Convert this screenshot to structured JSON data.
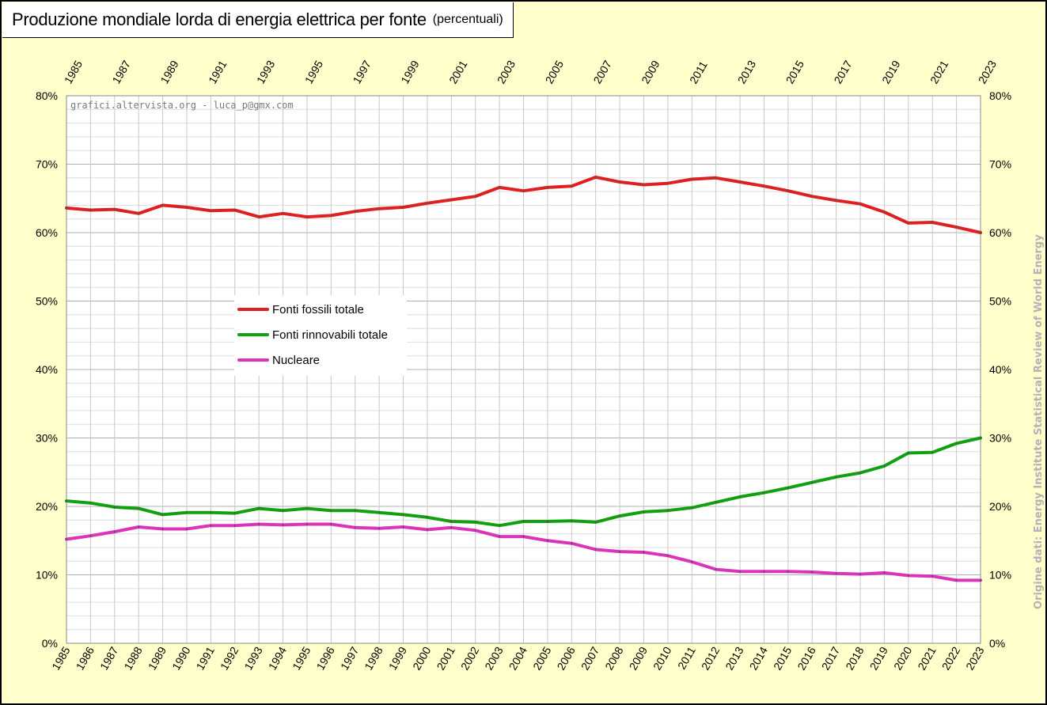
{
  "header": {
    "title": "Produzione mondiale lorda di energia elettrica per fonte",
    "subtitle": "(percentuali)"
  },
  "watermark": "grafici.altervista.org - luca_p@gmx.com",
  "source_note": "Origine dati: Energy Institute Statistical Review of World Energy",
  "chart_data": {
    "type": "line",
    "title": "Produzione mondiale lorda di energia elettrica per fonte",
    "subtitle": "(percentuali)",
    "xlabel": "",
    "ylabel": "",
    "ylim": [
      0,
      80
    ],
    "y_ticks": [
      "0%",
      "10%",
      "20%",
      "30%",
      "40%",
      "50%",
      "60%",
      "70%",
      "80%"
    ],
    "grid": true,
    "legend_position": "center-left",
    "x": [
      "1985",
      "1986",
      "1987",
      "1988",
      "1989",
      "1990",
      "1991",
      "1992",
      "1993",
      "1994",
      "1995",
      "1996",
      "1997",
      "1998",
      "1999",
      "2000",
      "2001",
      "2002",
      "2003",
      "2004",
      "2005",
      "2006",
      "2007",
      "2008",
      "2009",
      "2010",
      "2011",
      "2012",
      "2013",
      "2014",
      "2015",
      "2016",
      "2017",
      "2018",
      "2019",
      "2020",
      "2021",
      "2022",
      "2023"
    ],
    "top_axis_labels": [
      "1985",
      "1987",
      "1989",
      "1991",
      "1993",
      "1995",
      "1997",
      "1999",
      "2001",
      "2003",
      "2005",
      "2007",
      "2009",
      "2011",
      "2013",
      "2015",
      "2017",
      "2019",
      "2021",
      "2023"
    ],
    "series": [
      {
        "name": "Fonti fossili totale",
        "color": "#e02020",
        "values": [
          63.6,
          63.3,
          63.4,
          62.8,
          64.0,
          63.7,
          63.2,
          63.3,
          62.3,
          62.8,
          62.3,
          62.5,
          63.1,
          63.5,
          63.7,
          64.3,
          64.8,
          65.3,
          66.6,
          66.1,
          66.6,
          66.8,
          68.1,
          67.4,
          67.0,
          67.2,
          67.8,
          68.0,
          67.4,
          66.8,
          66.1,
          65.3,
          64.7,
          64.2,
          63.0,
          61.4,
          61.5,
          60.8,
          60.0
        ]
      },
      {
        "name": "Fonti rinnovabili totale",
        "color": "#10a010",
        "values": [
          20.8,
          20.5,
          19.9,
          19.7,
          18.8,
          19.1,
          19.1,
          19.0,
          19.7,
          19.4,
          19.7,
          19.4,
          19.4,
          19.1,
          18.8,
          18.4,
          17.8,
          17.7,
          17.2,
          17.8,
          17.8,
          17.9,
          17.7,
          18.6,
          19.2,
          19.4,
          19.8,
          20.6,
          21.4,
          22.0,
          22.7,
          23.5,
          24.3,
          24.9,
          25.9,
          27.8,
          27.9,
          29.2,
          30.0
        ]
      },
      {
        "name": "Nucleare",
        "color": "#dd33bb",
        "values": [
          15.2,
          15.7,
          16.3,
          17.0,
          16.7,
          16.7,
          17.2,
          17.2,
          17.4,
          17.3,
          17.4,
          17.4,
          16.9,
          16.8,
          17.0,
          16.6,
          16.9,
          16.5,
          15.6,
          15.6,
          15.0,
          14.6,
          13.7,
          13.4,
          13.3,
          12.8,
          11.9,
          10.8,
          10.5,
          10.5,
          10.5,
          10.4,
          10.2,
          10.1,
          10.3,
          9.9,
          9.8,
          9.2,
          9.2
        ]
      }
    ]
  }
}
